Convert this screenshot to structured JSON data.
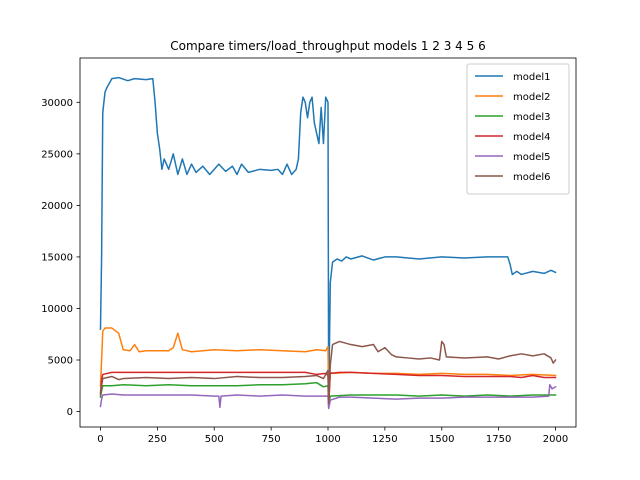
{
  "chart_data": {
    "type": "line",
    "title": "Compare timers/load_throughput models 1 2 3 4 5 6",
    "xlabel": "",
    "ylabel": "",
    "xlim": [
      -90,
      2090
    ],
    "ylim": [
      -1500,
      34300
    ],
    "xticks": [
      0,
      250,
      500,
      750,
      1000,
      1250,
      1500,
      1750,
      2000
    ],
    "yticks": [
      0,
      5000,
      10000,
      15000,
      20000,
      25000,
      30000
    ],
    "grid": false,
    "legend_position": "top-right",
    "series": [
      {
        "name": "model1",
        "color": "#1f77b4",
        "points": [
          [
            0,
            8000
          ],
          [
            5,
            15000
          ],
          [
            10,
            29000
          ],
          [
            20,
            31000
          ],
          [
            30,
            31500
          ],
          [
            50,
            32300
          ],
          [
            80,
            32400
          ],
          [
            120,
            32100
          ],
          [
            150,
            32300
          ],
          [
            200,
            32200
          ],
          [
            230,
            32300
          ],
          [
            240,
            30000
          ],
          [
            250,
            27000
          ],
          [
            260,
            25500
          ],
          [
            270,
            23500
          ],
          [
            280,
            24500
          ],
          [
            300,
            23500
          ],
          [
            320,
            25000
          ],
          [
            340,
            23000
          ],
          [
            360,
            24500
          ],
          [
            380,
            23000
          ],
          [
            400,
            24000
          ],
          [
            420,
            23200
          ],
          [
            450,
            23800
          ],
          [
            480,
            23000
          ],
          [
            500,
            23500
          ],
          [
            520,
            24000
          ],
          [
            550,
            23300
          ],
          [
            580,
            23800
          ],
          [
            600,
            23000
          ],
          [
            620,
            24000
          ],
          [
            650,
            23200
          ],
          [
            700,
            23500
          ],
          [
            750,
            23400
          ],
          [
            780,
            23500
          ],
          [
            800,
            23000
          ],
          [
            820,
            24000
          ],
          [
            840,
            23000
          ],
          [
            860,
            23500
          ],
          [
            870,
            24500
          ],
          [
            880,
            29000
          ],
          [
            890,
            30500
          ],
          [
            900,
            30000
          ],
          [
            910,
            28500
          ],
          [
            920,
            30000
          ],
          [
            930,
            30500
          ],
          [
            940,
            28000
          ],
          [
            950,
            27000
          ],
          [
            960,
            26000
          ],
          [
            970,
            29500
          ],
          [
            980,
            26000
          ],
          [
            990,
            30500
          ],
          [
            1000,
            30000
          ],
          [
            1003,
            500
          ],
          [
            1010,
            12500
          ],
          [
            1020,
            14500
          ],
          [
            1040,
            14800
          ],
          [
            1060,
            14600
          ],
          [
            1080,
            15000
          ],
          [
            1100,
            14800
          ],
          [
            1150,
            15100
          ],
          [
            1200,
            14700
          ],
          [
            1250,
            15000
          ],
          [
            1300,
            15000
          ],
          [
            1400,
            14800
          ],
          [
            1500,
            15000
          ],
          [
            1600,
            14900
          ],
          [
            1700,
            15000
          ],
          [
            1790,
            15000
          ],
          [
            1800,
            14300
          ],
          [
            1810,
            13300
          ],
          [
            1830,
            13600
          ],
          [
            1850,
            13300
          ],
          [
            1900,
            13600
          ],
          [
            1950,
            13400
          ],
          [
            1980,
            13700
          ],
          [
            2000,
            13500
          ]
        ]
      },
      {
        "name": "model2",
        "color": "#ff7f0e",
        "points": [
          [
            0,
            2500
          ],
          [
            5,
            5000
          ],
          [
            10,
            7800
          ],
          [
            20,
            8100
          ],
          [
            50,
            8100
          ],
          [
            80,
            7600
          ],
          [
            100,
            6000
          ],
          [
            130,
            5900
          ],
          [
            150,
            6500
          ],
          [
            170,
            5800
          ],
          [
            200,
            5900
          ],
          [
            300,
            5900
          ],
          [
            320,
            6200
          ],
          [
            340,
            7600
          ],
          [
            360,
            6000
          ],
          [
            400,
            5800
          ],
          [
            500,
            6000
          ],
          [
            600,
            5900
          ],
          [
            700,
            6000
          ],
          [
            800,
            5900
          ],
          [
            900,
            5800
          ],
          [
            950,
            6000
          ],
          [
            990,
            5900
          ],
          [
            1000,
            6300
          ],
          [
            1003,
            600
          ],
          [
            1010,
            3800
          ],
          [
            1020,
            3700
          ],
          [
            1100,
            3800
          ],
          [
            1200,
            3700
          ],
          [
            1300,
            3700
          ],
          [
            1400,
            3600
          ],
          [
            1500,
            3700
          ],
          [
            1600,
            3600
          ],
          [
            1700,
            3600
          ],
          [
            1800,
            3500
          ],
          [
            1900,
            3600
          ],
          [
            2000,
            3500
          ]
        ]
      },
      {
        "name": "model3",
        "color": "#2ca02c",
        "points": [
          [
            0,
            1400
          ],
          [
            5,
            2000
          ],
          [
            10,
            2500
          ],
          [
            50,
            2500
          ],
          [
            100,
            2600
          ],
          [
            200,
            2500
          ],
          [
            300,
            2600
          ],
          [
            400,
            2500
          ],
          [
            500,
            2500
          ],
          [
            600,
            2500
          ],
          [
            700,
            2600
          ],
          [
            800,
            2600
          ],
          [
            900,
            2700
          ],
          [
            950,
            2800
          ],
          [
            980,
            2400
          ],
          [
            1000,
            2500
          ],
          [
            1003,
            600
          ],
          [
            1010,
            1500
          ],
          [
            1100,
            1600
          ],
          [
            1200,
            1600
          ],
          [
            1300,
            1600
          ],
          [
            1400,
            1500
          ],
          [
            1500,
            1600
          ],
          [
            1600,
            1500
          ],
          [
            1700,
            1600
          ],
          [
            1800,
            1500
          ],
          [
            1900,
            1600
          ],
          [
            2000,
            1600
          ]
        ]
      },
      {
        "name": "model4",
        "color": "#d62728",
        "points": [
          [
            0,
            1800
          ],
          [
            5,
            3000
          ],
          [
            10,
            3600
          ],
          [
            50,
            3800
          ],
          [
            100,
            3800
          ],
          [
            200,
            3800
          ],
          [
            300,
            3800
          ],
          [
            400,
            3800
          ],
          [
            500,
            3800
          ],
          [
            600,
            3800
          ],
          [
            700,
            3800
          ],
          [
            800,
            3800
          ],
          [
            900,
            3800
          ],
          [
            950,
            3600
          ],
          [
            990,
            3700
          ],
          [
            1000,
            3500
          ],
          [
            1003,
            700
          ],
          [
            1010,
            3700
          ],
          [
            1050,
            3800
          ],
          [
            1100,
            3800
          ],
          [
            1200,
            3700
          ],
          [
            1300,
            3600
          ],
          [
            1400,
            3500
          ],
          [
            1500,
            3500
          ],
          [
            1600,
            3400
          ],
          [
            1700,
            3400
          ],
          [
            1800,
            3400
          ],
          [
            1850,
            3300
          ],
          [
            1900,
            3500
          ],
          [
            1950,
            3300
          ],
          [
            2000,
            3300
          ]
        ]
      },
      {
        "name": "model5",
        "color": "#9467bd",
        "points": [
          [
            0,
            500
          ],
          [
            5,
            1200
          ],
          [
            10,
            1600
          ],
          [
            50,
            1700
          ],
          [
            100,
            1600
          ],
          [
            200,
            1600
          ],
          [
            300,
            1600
          ],
          [
            400,
            1600
          ],
          [
            500,
            1500
          ],
          [
            520,
            1500
          ],
          [
            525,
            400
          ],
          [
            530,
            1500
          ],
          [
            600,
            1600
          ],
          [
            700,
            1500
          ],
          [
            800,
            1600
          ],
          [
            900,
            1500
          ],
          [
            1000,
            1500
          ],
          [
            1003,
            300
          ],
          [
            1010,
            1100
          ],
          [
            1050,
            1400
          ],
          [
            1100,
            1400
          ],
          [
            1200,
            1300
          ],
          [
            1300,
            1200
          ],
          [
            1400,
            1300
          ],
          [
            1500,
            1300
          ],
          [
            1600,
            1400
          ],
          [
            1700,
            1400
          ],
          [
            1800,
            1400
          ],
          [
            1900,
            1400
          ],
          [
            1970,
            1500
          ],
          [
            1975,
            2600
          ],
          [
            1985,
            2200
          ],
          [
            2000,
            2400
          ]
        ]
      },
      {
        "name": "model6",
        "color": "#8c564b",
        "points": [
          [
            0,
            1600
          ],
          [
            5,
            2500
          ],
          [
            10,
            3200
          ],
          [
            50,
            3400
          ],
          [
            80,
            3100
          ],
          [
            100,
            3200
          ],
          [
            200,
            3300
          ],
          [
            300,
            3200
          ],
          [
            400,
            3300
          ],
          [
            500,
            3200
          ],
          [
            600,
            3400
          ],
          [
            700,
            3300
          ],
          [
            800,
            3300
          ],
          [
            900,
            3400
          ],
          [
            950,
            3500
          ],
          [
            980,
            3200
          ],
          [
            1000,
            4000
          ],
          [
            1003,
            800
          ],
          [
            1010,
            4500
          ],
          [
            1020,
            6500
          ],
          [
            1050,
            6800
          ],
          [
            1100,
            6500
          ],
          [
            1150,
            6300
          ],
          [
            1200,
            6500
          ],
          [
            1220,
            5800
          ],
          [
            1250,
            6200
          ],
          [
            1280,
            5500
          ],
          [
            1300,
            5300
          ],
          [
            1350,
            5200
          ],
          [
            1400,
            5100
          ],
          [
            1450,
            5200
          ],
          [
            1490,
            5000
          ],
          [
            1500,
            6800
          ],
          [
            1510,
            6500
          ],
          [
            1520,
            5300
          ],
          [
            1600,
            5200
          ],
          [
            1700,
            5300
          ],
          [
            1750,
            5100
          ],
          [
            1800,
            5400
          ],
          [
            1850,
            5600
          ],
          [
            1900,
            5400
          ],
          [
            1950,
            5600
          ],
          [
            1980,
            5200
          ],
          [
            1990,
            4700
          ],
          [
            2000,
            5000
          ]
        ]
      }
    ]
  }
}
